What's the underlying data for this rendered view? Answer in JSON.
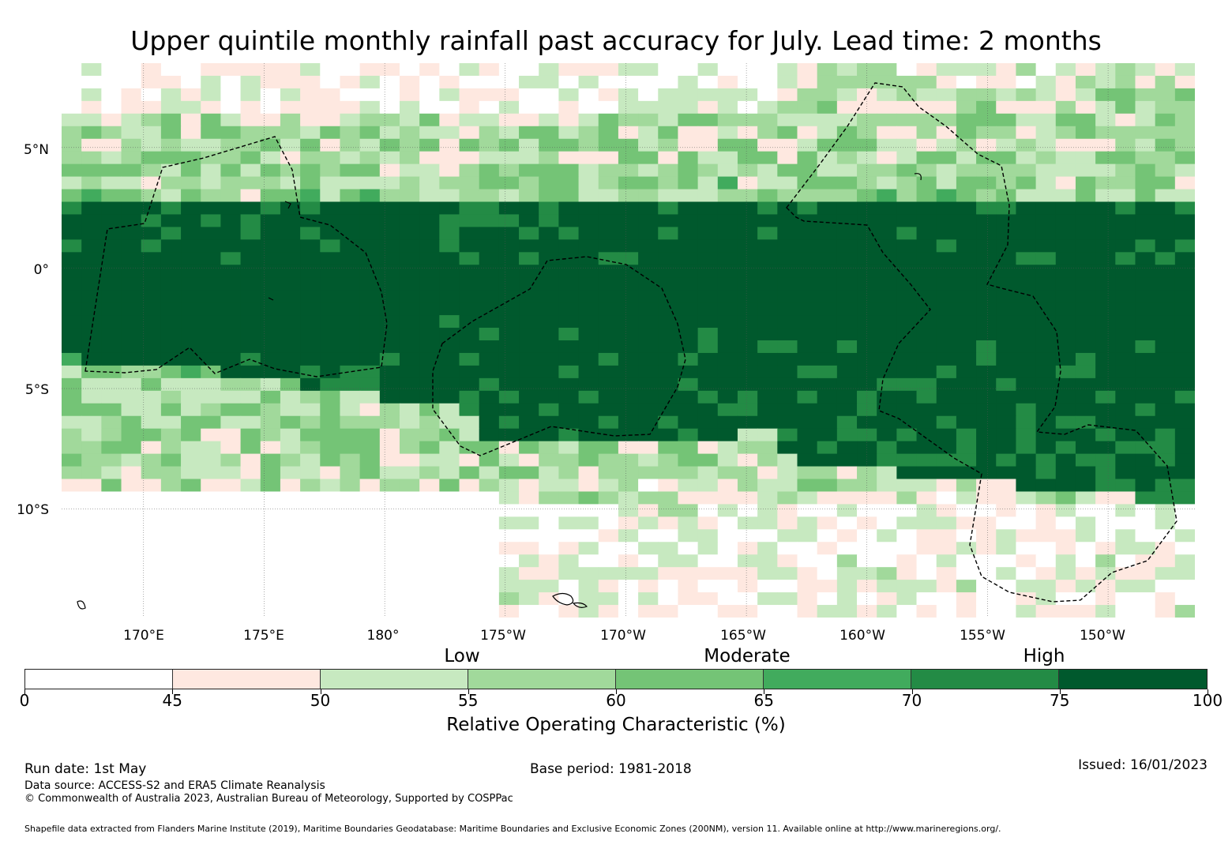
{
  "title": "Upper quintile monthly rainfall past accuracy for July. Lead time: 2 months",
  "map": {
    "lat_range": [
      -14.5,
      8.5
    ],
    "lon_range_east": [
      166.6,
      213.6
    ],
    "lat_labels": [
      "5°N",
      "0°",
      "5°S",
      "10°S"
    ],
    "lat_values": [
      5,
      0,
      -5,
      -10
    ],
    "lon_labels": [
      "170°E",
      "175°E",
      "180°",
      "175°W",
      "170°W",
      "165°W",
      "160°W",
      "155°W",
      "150°W"
    ],
    "lon_values": [
      170,
      175,
      180,
      185,
      190,
      195,
      200,
      205,
      210
    ],
    "grid_color": "#555555"
  },
  "colorbar": {
    "title": "Relative Operating Characteristic (%)",
    "bounds": [
      0,
      45,
      50,
      55,
      60,
      65,
      70,
      75,
      100
    ],
    "colors": [
      "#ffffff",
      "#fee8e0",
      "#c7e9c0",
      "#a1d99b",
      "#74c476",
      "#41ab5d",
      "#238b45",
      "#00592d"
    ],
    "categories": [
      {
        "label": "Low",
        "value": 55
      },
      {
        "label": "Moderate",
        "value": 65
      },
      {
        "label": "High",
        "value": 75
      }
    ]
  },
  "footer": {
    "run_date": "Run date: 1st May",
    "base_period": "Base period: 1981-2018",
    "issued": "Issued: 16/01/2023",
    "data_source": "Data source: ACCESS-S2 and ERA5 Climate Reanalysis",
    "copyright": "© Commonwealth of Australia 2023, Australian Bureau of Meteorology, Supported by COSPPac",
    "shapefile": "Shapefile data extracted from Flanders Marine Institute (2019), Maritime Boundaries Geodatabase: Maritime Boundaries and Exclusive Economic Zones (200NM), version 11. Available online at http://www.marineregions.org/."
  }
}
